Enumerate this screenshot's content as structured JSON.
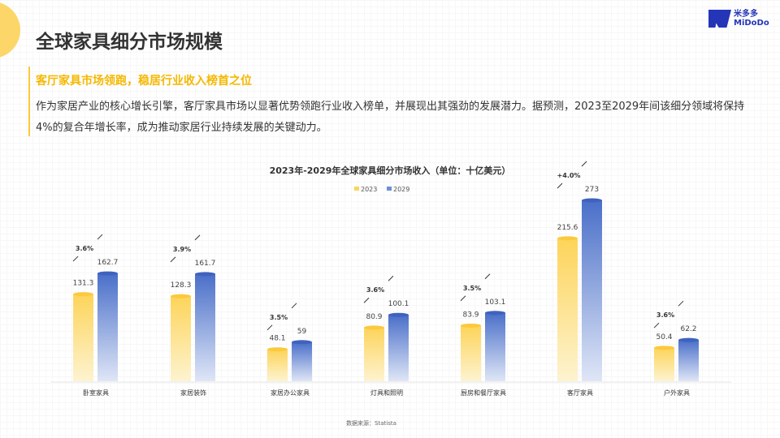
{
  "header": {
    "title": "全球家具细分市场规模",
    "logo_text": "米多多",
    "logo_sub": "MiDoDo"
  },
  "section": {
    "subtitle": "客厅家具市场领跑，稳居行业收入榜首之位",
    "body": "作为家居产业的核心增长引擎，客厅家具市场以显著优势领跑行业收入榜单，并展现出其强劲的发展潜力。据预测，2023至2029年间该细分领域将保持4%的复合年增长率，成为推动家居行业持续发展的关键动力。"
  },
  "colors": {
    "accent": "#fcc93a",
    "series2023": "#fdd45a",
    "series2029": "#4a6fc9",
    "logo": "#2535b8"
  },
  "chart_data": {
    "type": "bar",
    "title": "2023年-2029年全球家具细分市场收入（单位：十亿美元）",
    "categories": [
      "卧室家具",
      "家居装饰",
      "家居办公家具",
      "灯具和照明",
      "厨房和餐厅家具",
      "客厅家具",
      "户外家具"
    ],
    "series": [
      {
        "name": "2023",
        "values": [
          131.3,
          128.3,
          48.1,
          80.9,
          83.9,
          215.6,
          50.4
        ]
      },
      {
        "name": "2029",
        "values": [
          162.7,
          161.7,
          59,
          100.1,
          103.1,
          273,
          62.2
        ]
      }
    ],
    "cagr_labels": [
      "3.6%",
      "3.9%",
      "3.5%",
      "3.6%",
      "3.5%",
      "+4.0%",
      "3.6%"
    ],
    "legend": "top",
    "grid": false,
    "source": "数据来源：Statista"
  }
}
